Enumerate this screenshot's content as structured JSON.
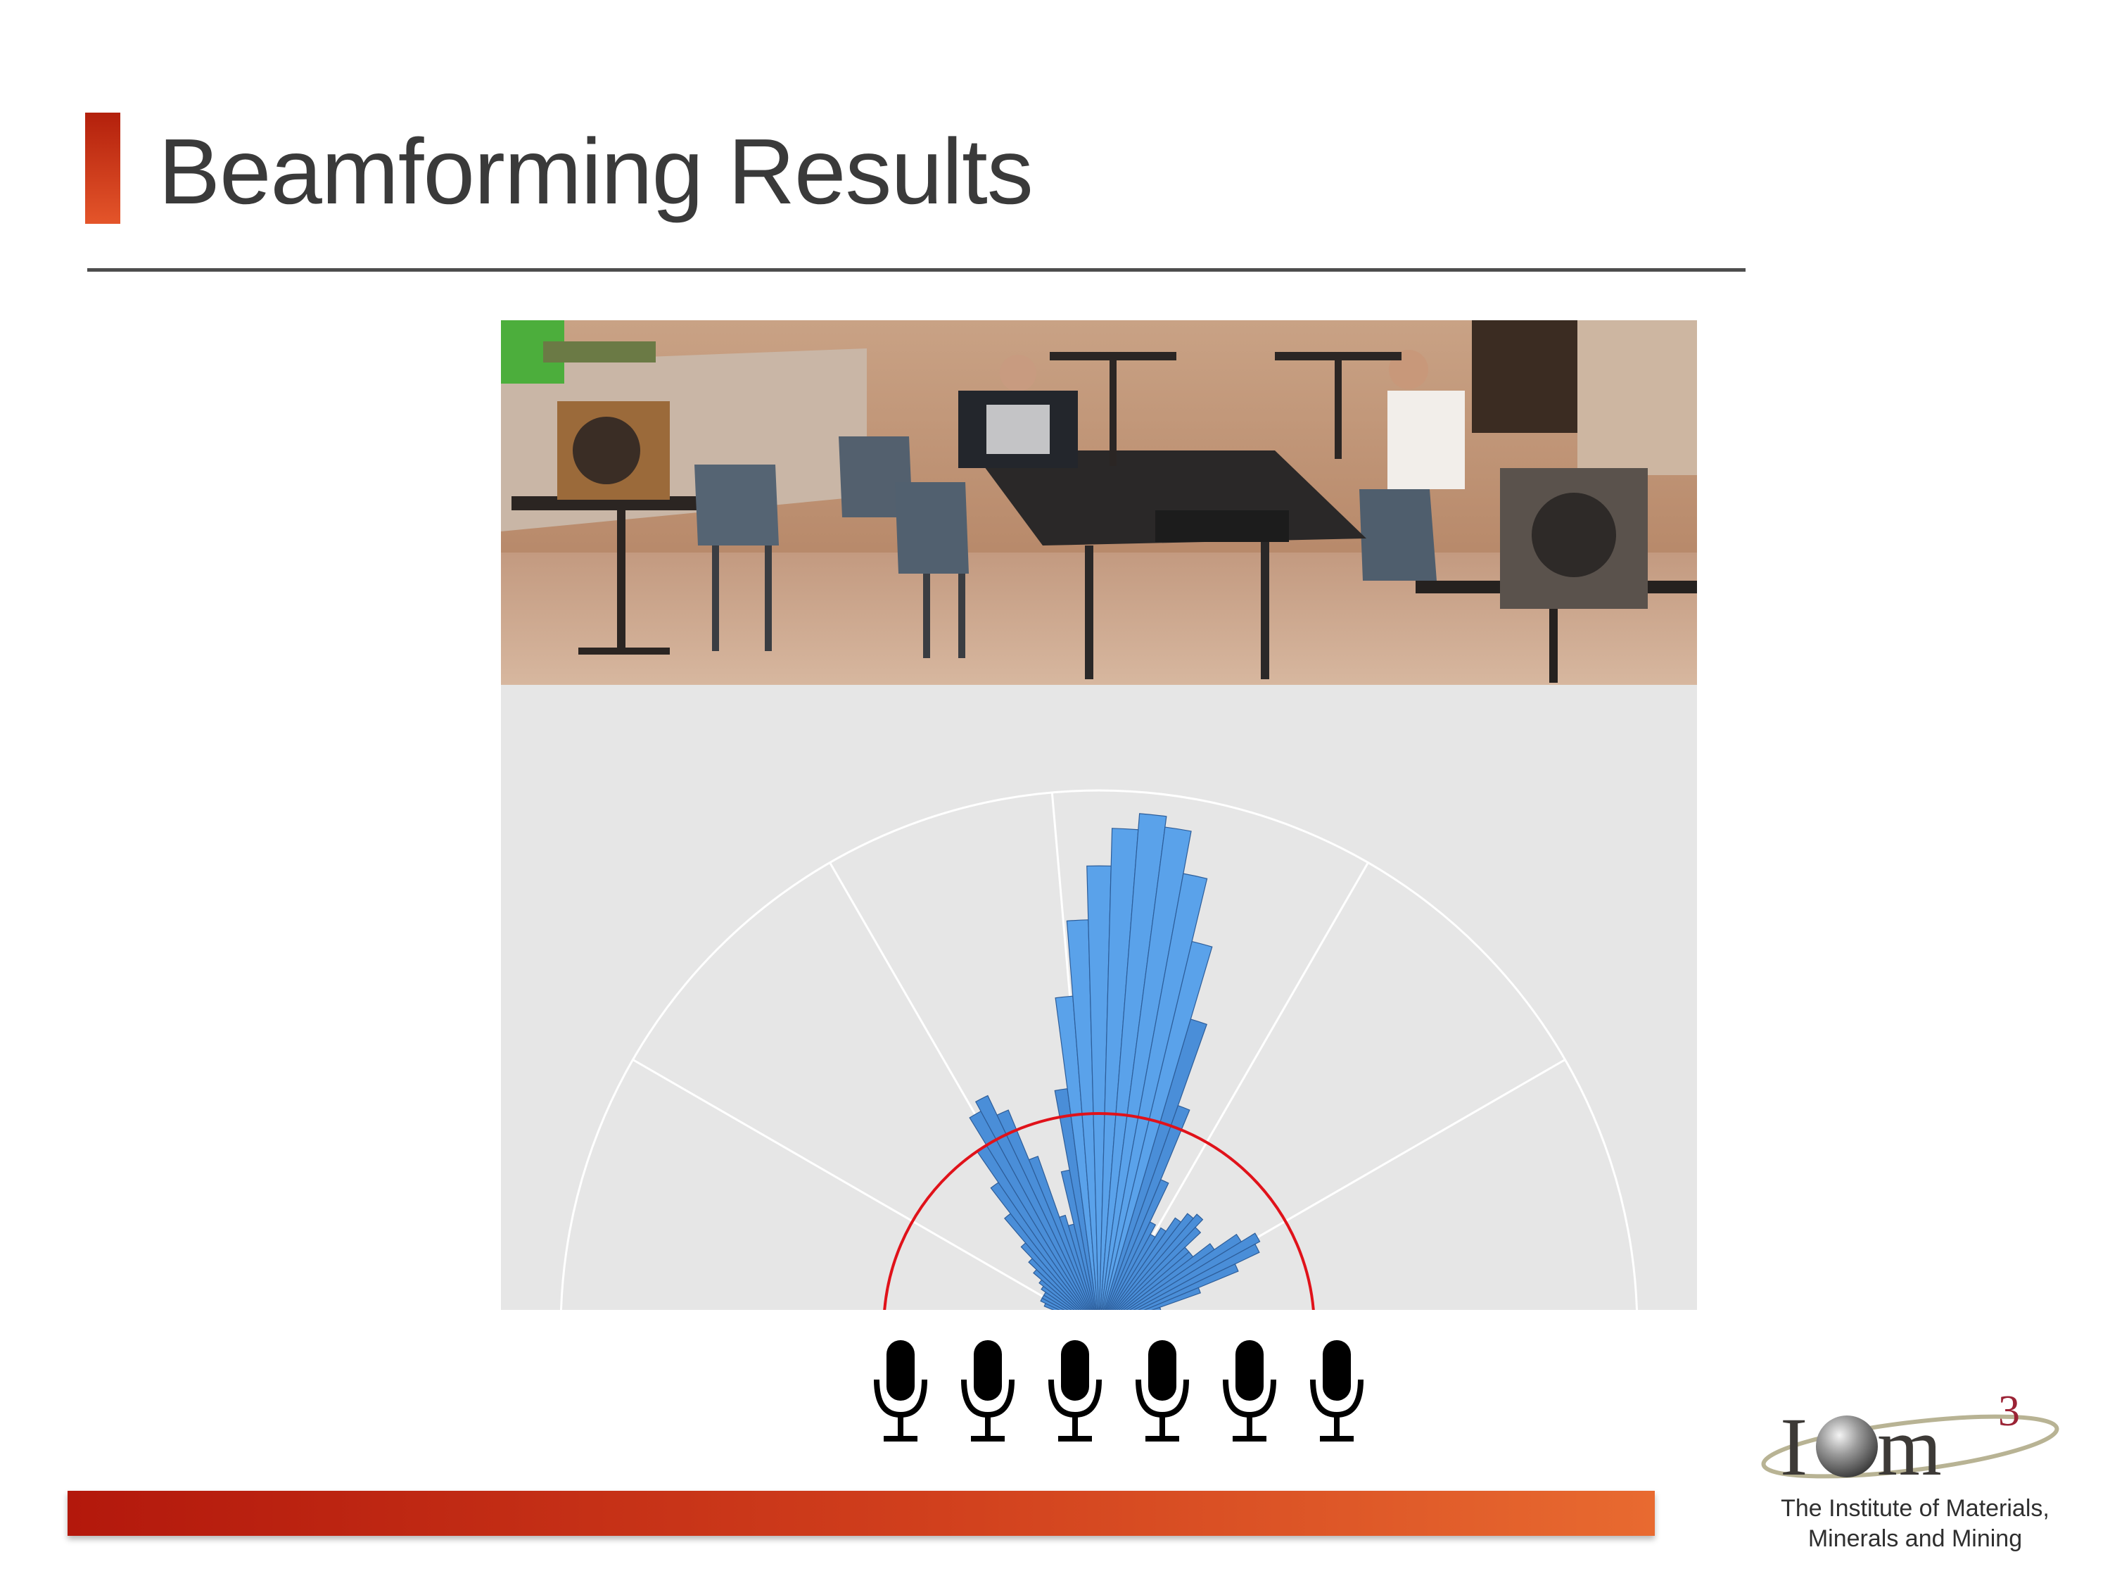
{
  "slide": {
    "title": "Beamforming Results"
  },
  "logo": {
    "mark": "IOM3",
    "caption_line1": "The Institute of Materials,",
    "caption_line2": "Minerals and Mining"
  },
  "colors": {
    "accent": "#c8321a",
    "bar_fill": "#4a8ed8",
    "bar_fill_light": "#5aa2ea",
    "bar_edge": "#2d5d99",
    "reference_line": "#e0121a",
    "plot_background": "#e6e6e6",
    "grid": "#ffffff"
  },
  "icons": {
    "microphone": "microphone-icon",
    "microphone_count": 6
  },
  "chart_data": {
    "type": "polar-bar",
    "title": "",
    "angle_unit": "degrees",
    "angle_range": [
      -90,
      90
    ],
    "bar_width_deg": 3,
    "radial_range": [
      0,
      1
    ],
    "grid": true,
    "angle_gridlines": [
      -60,
      -30,
      -5,
      30,
      60
    ],
    "radial_gridlines": [
      1.0
    ],
    "reference_radius": 0.4,
    "series": [
      {
        "angles": [
          -90,
          -87,
          -84,
          -81,
          -78,
          -75,
          -72,
          -69,
          -66,
          -63,
          -60,
          -57,
          -54,
          -51,
          -48,
          -45,
          -42,
          -39,
          -36,
          -33,
          -30,
          -27,
          -24,
          -21,
          -18,
          -15,
          -12,
          -9,
          -6,
          -3,
          0,
          3,
          6,
          9,
          12,
          15,
          18,
          21,
          24,
          27,
          30,
          33,
          36,
          39,
          42,
          45,
          48,
          51,
          54,
          57,
          60,
          63,
          66,
          69,
          72,
          75,
          78,
          81,
          84,
          87,
          90
        ],
        "values": [
          0.01,
          0.01,
          0.01,
          0.02,
          0.03,
          0.05,
          0.07,
          0.09,
          0.11,
          0.12,
          0.12,
          0.12,
          0.13,
          0.14,
          0.16,
          0.18,
          0.21,
          0.27,
          0.33,
          0.4,
          0.46,
          0.48,
          0.44,
          0.34,
          0.22,
          0.2,
          0.3,
          0.45,
          0.62,
          0.76,
          0.86,
          0.93,
          0.96,
          0.94,
          0.86,
          0.74,
          0.6,
          0.44,
          0.3,
          0.22,
          0.2,
          0.22,
          0.25,
          0.27,
          0.28,
          0.26,
          0.22,
          0.22,
          0.26,
          0.31,
          0.34,
          0.33,
          0.28,
          0.2,
          0.12,
          0.08,
          0.05,
          0.03,
          0.02,
          0.01,
          0.01
        ]
      }
    ]
  }
}
